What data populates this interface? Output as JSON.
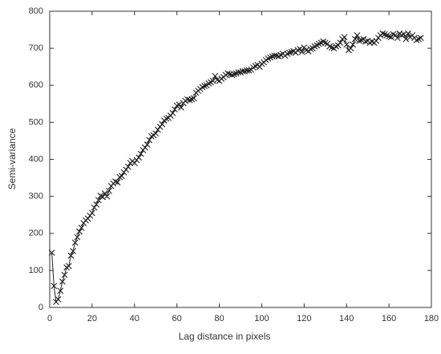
{
  "chart_data": {
    "type": "line",
    "x_label": "Lag distance in pixels",
    "y_label": "Semi-variance",
    "xlim": [
      0,
      180
    ],
    "xticks": [
      0,
      20,
      40,
      60,
      80,
      100,
      120,
      140,
      160,
      180
    ],
    "ylim": [
      0,
      800
    ],
    "yticks": [
      0,
      100,
      200,
      300,
      400,
      500,
      600,
      700,
      800
    ],
    "grid": false,
    "marker": "x",
    "x": [
      1,
      2,
      3,
      4,
      5,
      6,
      7,
      8,
      9,
      10,
      11,
      12,
      13,
      14,
      15,
      16,
      17,
      18,
      19,
      20,
      21,
      22,
      23,
      24,
      25,
      26,
      27,
      28,
      29,
      30,
      31,
      32,
      33,
      34,
      35,
      36,
      37,
      38,
      39,
      40,
      41,
      42,
      43,
      44,
      45,
      46,
      47,
      48,
      49,
      50,
      51,
      52,
      53,
      54,
      55,
      56,
      57,
      58,
      59,
      60,
      61,
      62,
      63,
      64,
      65,
      66,
      67,
      68,
      69,
      70,
      71,
      72,
      73,
      74,
      75,
      76,
      77,
      78,
      79,
      80,
      81,
      82,
      83,
      84,
      85,
      86,
      87,
      88,
      89,
      90,
      91,
      92,
      93,
      94,
      95,
      96,
      97,
      98,
      99,
      100,
      101,
      102,
      103,
      104,
      105,
      106,
      107,
      108,
      109,
      110,
      111,
      112,
      113,
      114,
      115,
      116,
      117,
      118,
      119,
      120,
      121,
      122,
      123,
      124,
      125,
      126,
      127,
      128,
      129,
      130,
      131,
      132,
      133,
      134,
      135,
      136,
      137,
      138,
      139,
      140,
      141,
      142,
      143,
      144,
      145,
      146,
      147,
      148,
      149,
      150,
      151,
      152,
      153,
      154,
      155,
      156,
      157,
      158,
      159,
      160,
      161,
      162,
      163,
      164,
      165,
      166,
      167,
      168,
      169,
      170,
      171,
      172,
      173,
      174,
      175
    ],
    "series": [
      {
        "color": "#222222",
        "values": [
          148,
          58,
          15,
          22,
          45,
          70,
          88,
          108,
          112,
          140,
          152,
          175,
          190,
          205,
          215,
          228,
          235,
          240,
          248,
          255,
          270,
          278,
          290,
          302,
          298,
          308,
          300,
          315,
          328,
          335,
          340,
          338,
          352,
          355,
          365,
          372,
          380,
          390,
          395,
          390,
          398,
          405,
          415,
          425,
          432,
          440,
          452,
          462,
          465,
          470,
          480,
          488,
          495,
          505,
          510,
          512,
          518,
          525,
          535,
          545,
          548,
          540,
          552,
          558,
          562,
          560,
          562,
          565,
          580,
          585,
          590,
          595,
          598,
          600,
          605,
          608,
          612,
          625,
          615,
          612,
          618,
          622,
          628,
          632,
          630,
          628,
          630,
          632,
          635,
          635,
          638,
          638,
          640,
          640,
          642,
          648,
          652,
          655,
          650,
          658,
          662,
          668,
          672,
          675,
          678,
          680,
          680,
          678,
          682,
          685,
          680,
          685,
          688,
          690,
          692,
          688,
          695,
          698,
          690,
          702,
          695,
          692,
          698,
          700,
          705,
          708,
          712,
          715,
          718,
          715,
          712,
          705,
          702,
          700,
          705,
          708,
          715,
          725,
          730,
          710,
          695,
          700,
          710,
          725,
          735,
          720,
          722,
          725,
          718,
          720,
          715,
          718,
          715,
          720,
          728,
          735,
          740,
          738,
          735,
          732,
          730,
          738,
          735,
          728,
          740,
          735,
          738,
          725,
          740,
          730,
          735,
          728,
          722,
          725,
          728
        ]
      }
    ]
  }
}
